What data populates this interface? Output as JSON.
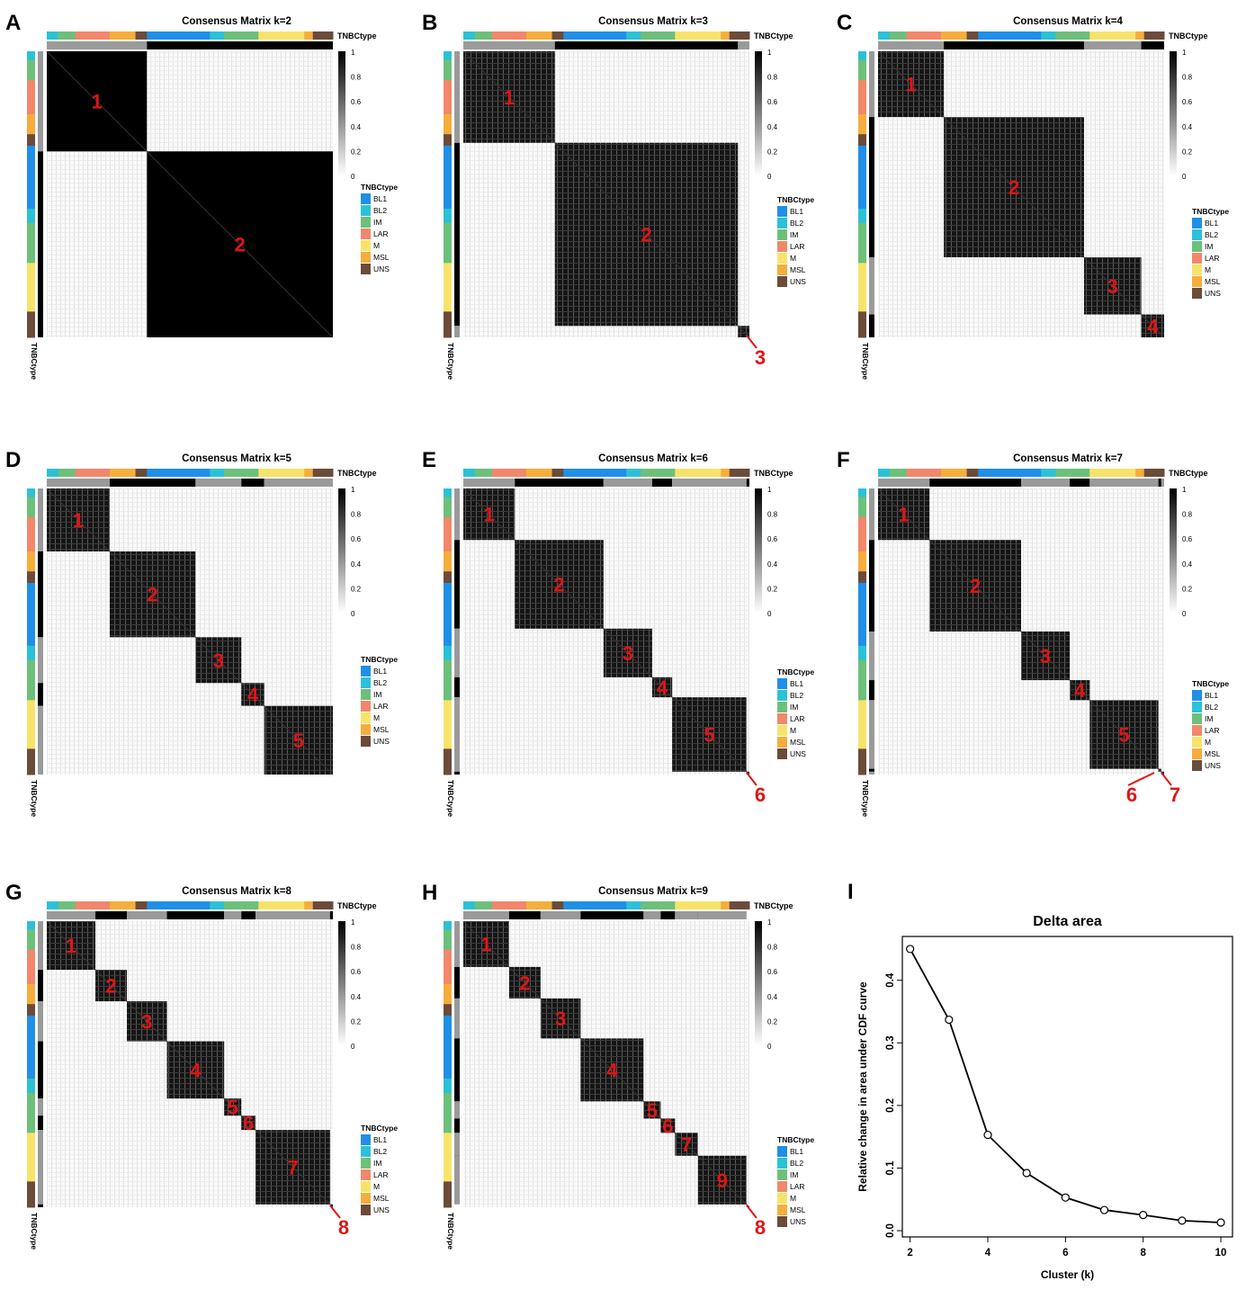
{
  "colors": {
    "BL1": "#1f8fe8",
    "BL2": "#2bc1d6",
    "IM": "#6cc07a",
    "LAR": "#f2876b",
    "M": "#f8e36a",
    "MSL": "#f6ad3b",
    "UNS": "#6b4b3a",
    "cluster_dark": "#000000",
    "cluster_light": "#9a9a9a",
    "label_red": "#e01515"
  },
  "annotation_name": "TNBCtype",
  "legend": {
    "title": "TNBCtype",
    "entries": [
      "BL1",
      "BL2",
      "IM",
      "LAR",
      "M",
      "MSL",
      "UNS"
    ]
  },
  "colorbar_ticks": [
    "1",
    "0.8",
    "0.6",
    "0.4",
    "0.2",
    "0"
  ],
  "panels": [
    {
      "letter": "A",
      "title": "Consensus Matrix k=2",
      "k": 2,
      "blocks": [
        0.35,
        0.65
      ],
      "labels": [
        "1",
        "2"
      ],
      "callouts": []
    },
    {
      "letter": "B",
      "title": "Consensus Matrix k=3",
      "k": 3,
      "blocks": [
        0.32,
        0.64,
        0.04
      ],
      "labels": [
        "1",
        "2",
        "3"
      ],
      "callouts": [
        "3"
      ]
    },
    {
      "letter": "C",
      "title": "Consensus Matrix k=4",
      "k": 4,
      "blocks": [
        0.23,
        0.49,
        0.2,
        0.08
      ],
      "labels": [
        "1",
        "2",
        "3",
        "4"
      ],
      "callouts": []
    },
    {
      "letter": "D",
      "title": "Consensus Matrix k=5",
      "k": 5,
      "blocks": [
        0.22,
        0.3,
        0.16,
        0.08,
        0.24
      ],
      "labels": [
        "1",
        "2",
        "3",
        "4",
        "5"
      ],
      "callouts": []
    },
    {
      "letter": "E",
      "title": "Consensus Matrix k=6",
      "k": 6,
      "blocks": [
        0.18,
        0.31,
        0.17,
        0.07,
        0.26,
        0.01
      ],
      "labels": [
        "1",
        "2",
        "3",
        "4",
        "5",
        "6"
      ],
      "callouts": [
        "6"
      ]
    },
    {
      "letter": "F",
      "title": "Consensus Matrix k=7",
      "k": 7,
      "blocks": [
        0.18,
        0.32,
        0.17,
        0.07,
        0.24,
        0.01,
        0.01
      ],
      "labels": [
        "1",
        "2",
        "3",
        "4",
        "5",
        "6",
        "7"
      ],
      "callouts": [
        "6",
        "7"
      ]
    },
    {
      "letter": "G",
      "title": "Consensus Matrix k=8",
      "k": 8,
      "blocks": [
        0.17,
        0.11,
        0.14,
        0.2,
        0.06,
        0.05,
        0.26,
        0.01
      ],
      "labels": [
        "1",
        "2",
        "3",
        "4",
        "5",
        "6",
        "7",
        "8"
      ],
      "callouts": [
        "8"
      ]
    },
    {
      "letter": "H",
      "title": "Consensus Matrix k=9",
      "k": 9,
      "blocks": [
        0.16,
        0.11,
        0.14,
        0.22,
        0.06,
        0.05,
        0.08,
        0.0,
        0.17
      ],
      "labels": [
        "1",
        "2",
        "3",
        "4",
        "5",
        "6",
        "7",
        "8",
        "9"
      ],
      "callouts": [
        "8"
      ]
    }
  ],
  "chart_data": {
    "type": "line",
    "letter": "I",
    "title": "Delta area",
    "xlabel": "Cluster (k)",
    "ylabel": "Relative change in area under CDF curve",
    "x": [
      2,
      3,
      4,
      5,
      6,
      7,
      8,
      9,
      10
    ],
    "y": [
      0.45,
      0.337,
      0.153,
      0.092,
      0.053,
      0.033,
      0.025,
      0.016,
      0.013
    ],
    "xticks": [
      "2",
      "4",
      "6",
      "8",
      "10"
    ],
    "yticks": [
      "0.0",
      "0.1",
      "0.2",
      "0.3",
      "0.4"
    ],
    "xlim": [
      2,
      10
    ],
    "ylim": [
      0,
      0.45
    ]
  }
}
